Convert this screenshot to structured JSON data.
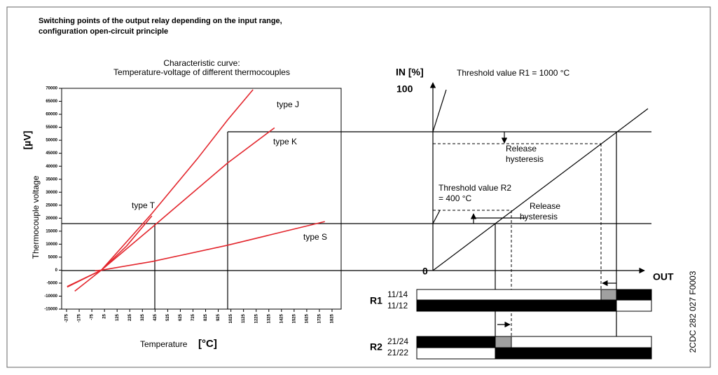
{
  "header": {
    "title_lines": [
      "Switching points of the output relay depending on the input range,",
      "configuration open-circuit principle"
    ]
  },
  "chart_data": {
    "type": "line",
    "title_lines": [
      "Characteristic curve:",
      "Temperature-voltage of different thermocouples"
    ],
    "x_label": "Temperature",
    "x_unit": "[°C]",
    "y_label": "Thermocouple voltage",
    "y_unit": "[µV]",
    "xlim": [
      -275,
      1825
    ],
    "xticks": [
      -275,
      -175,
      -75,
      25,
      125,
      225,
      325,
      425,
      525,
      625,
      725,
      825,
      925,
      1025,
      1125,
      1225,
      1325,
      1425,
      1525,
      1625,
      1725,
      1825
    ],
    "ylim": [
      -15000,
      70000
    ],
    "yticks": [
      -15000,
      -10000,
      -5000,
      0,
      5000,
      10000,
      15000,
      20000,
      25000,
      30000,
      35000,
      40000,
      45000,
      50000,
      55000,
      60000,
      65000,
      70000
    ],
    "series": [
      {
        "name": "type J",
        "color": "#e3262d",
        "x": [
          -210,
          0,
          400,
          760,
          1000,
          1200
        ],
        "values": [
          -8100,
          0,
          21800,
          42900,
          57900,
          69500
        ]
      },
      {
        "name": "type K",
        "color": "#e3262d",
        "x": [
          -270,
          0,
          400,
          1000,
          1370
        ],
        "values": [
          -6500,
          0,
          16400,
          41300,
          54800
        ]
      },
      {
        "name": "type T",
        "color": "#e3262d",
        "x": [
          -270,
          0,
          200,
          400
        ],
        "values": [
          -6300,
          0,
          9300,
          20900
        ]
      },
      {
        "name": "type S",
        "color": "#e3262d",
        "x": [
          -50,
          0,
          400,
          1000,
          1768
        ],
        "values": [
          -240,
          0,
          3300,
          9600,
          18700
        ]
      }
    ]
  },
  "switching_diagram": {
    "in_axis": "IN [%]",
    "in_max": "100",
    "origin": "0",
    "out_axis": "OUT",
    "threshold_r1": "Threshold value R1 = 1000 °C",
    "release_r1": [
      "Release",
      "hysteresis"
    ],
    "threshold_r2": [
      "Threshold value R2",
      "= 400 °C"
    ],
    "release_r2": [
      "Release",
      "hysteresis"
    ],
    "relay1": "R1",
    "contact_11_14": "11/14",
    "contact_11_12": "11/12",
    "relay2": "R2",
    "contact_21_24": "21/24",
    "contact_21_22": "21/22",
    "drawing_id": "2CDC 282 027 F0003"
  }
}
